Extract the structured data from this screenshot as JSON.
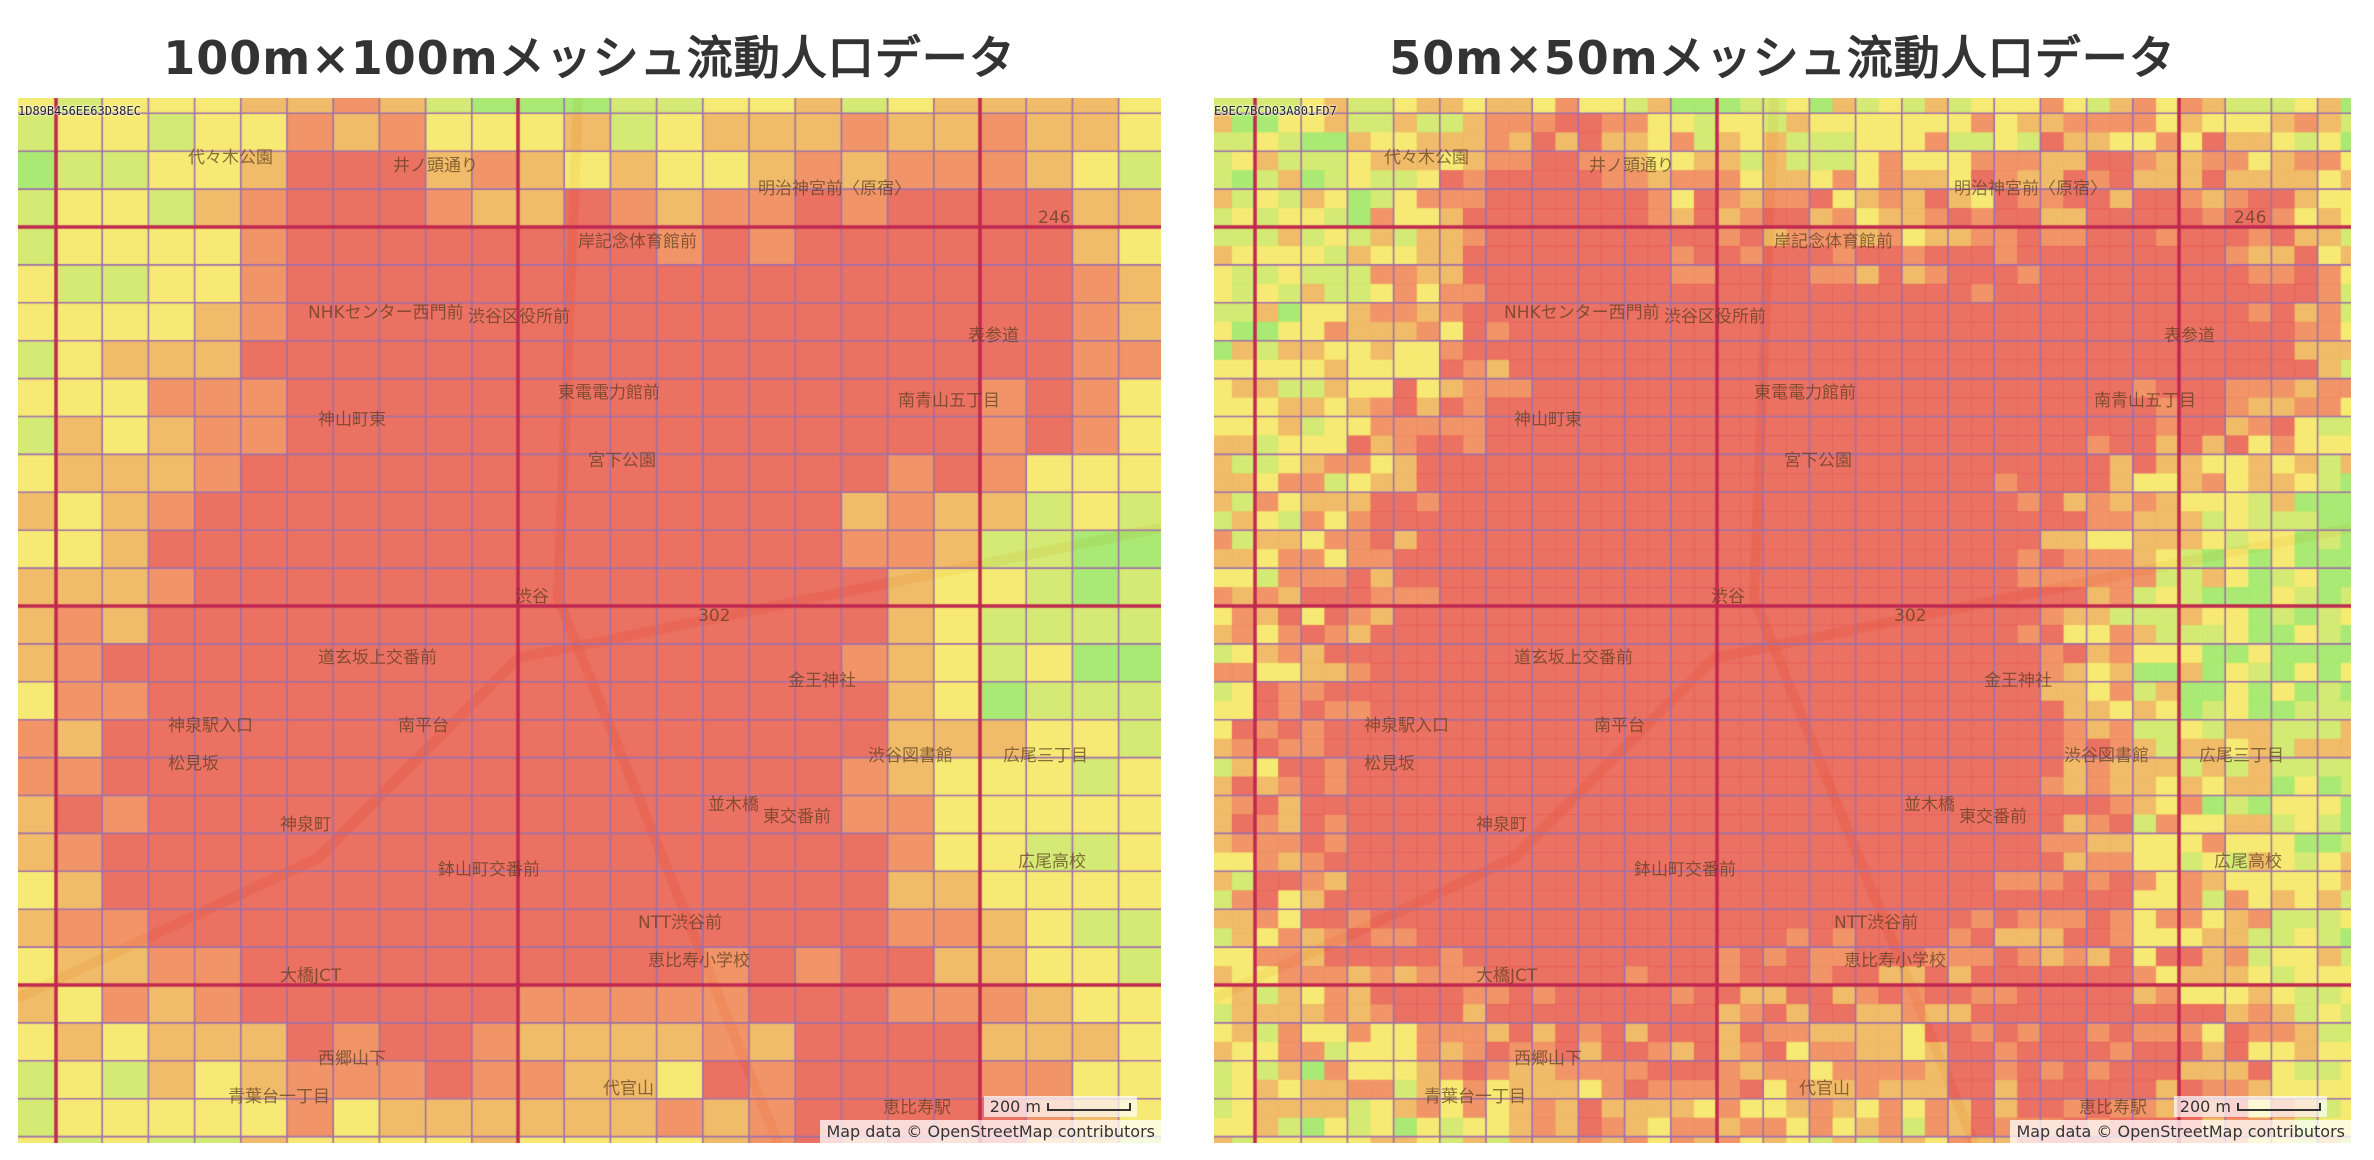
{
  "left": {
    "title": "100m×100mメッシュ流動人口データ",
    "mesh_id": "1D89B456EE63D38EC",
    "cell_resolution": "100m"
  },
  "right": {
    "title": "50m×50mメッシュ流動人口データ",
    "mesh_id": "E9EC7BCD03A801FD7",
    "cell_resolution": "50m"
  },
  "map": {
    "scale_label": "200 m",
    "attribution": "Map data © OpenStreetMap contributors",
    "places": [
      "代々木公園",
      "井ノ頭通り",
      "明治神宮前〈原宿〉",
      "岸記念体育館前",
      "NHKセンター西門前",
      "渋谷区役所前",
      "表参道",
      "東電電力館前",
      "神山町東",
      "南青山五丁目",
      "宮下公園",
      "渋谷",
      "道玄坂上交番前",
      "金王神社",
      "南平台",
      "神泉駅入口",
      "渋谷図書館",
      "並木橋",
      "広尾三丁目",
      "松見坂",
      "神泉町",
      "東交番前",
      "広尾高校",
      "鉢山町交番前",
      "NTT渋谷前",
      "恵比寿小学校",
      "西郷山下",
      "代官山",
      "恵比寿駅",
      "青葉台一丁目",
      "大橋JCT",
      "246",
      "302"
    ]
  },
  "colors": {
    "low": "#8ef060",
    "mid_low": "#c8f060",
    "mid": "#f8f060",
    "mid_high": "#f0b050",
    "high": "#f07a50",
    "very_high": "#e84848",
    "mesh_line": "#a070a8",
    "major_line": "#c02850",
    "map_base": "#f2d9a8"
  }
}
